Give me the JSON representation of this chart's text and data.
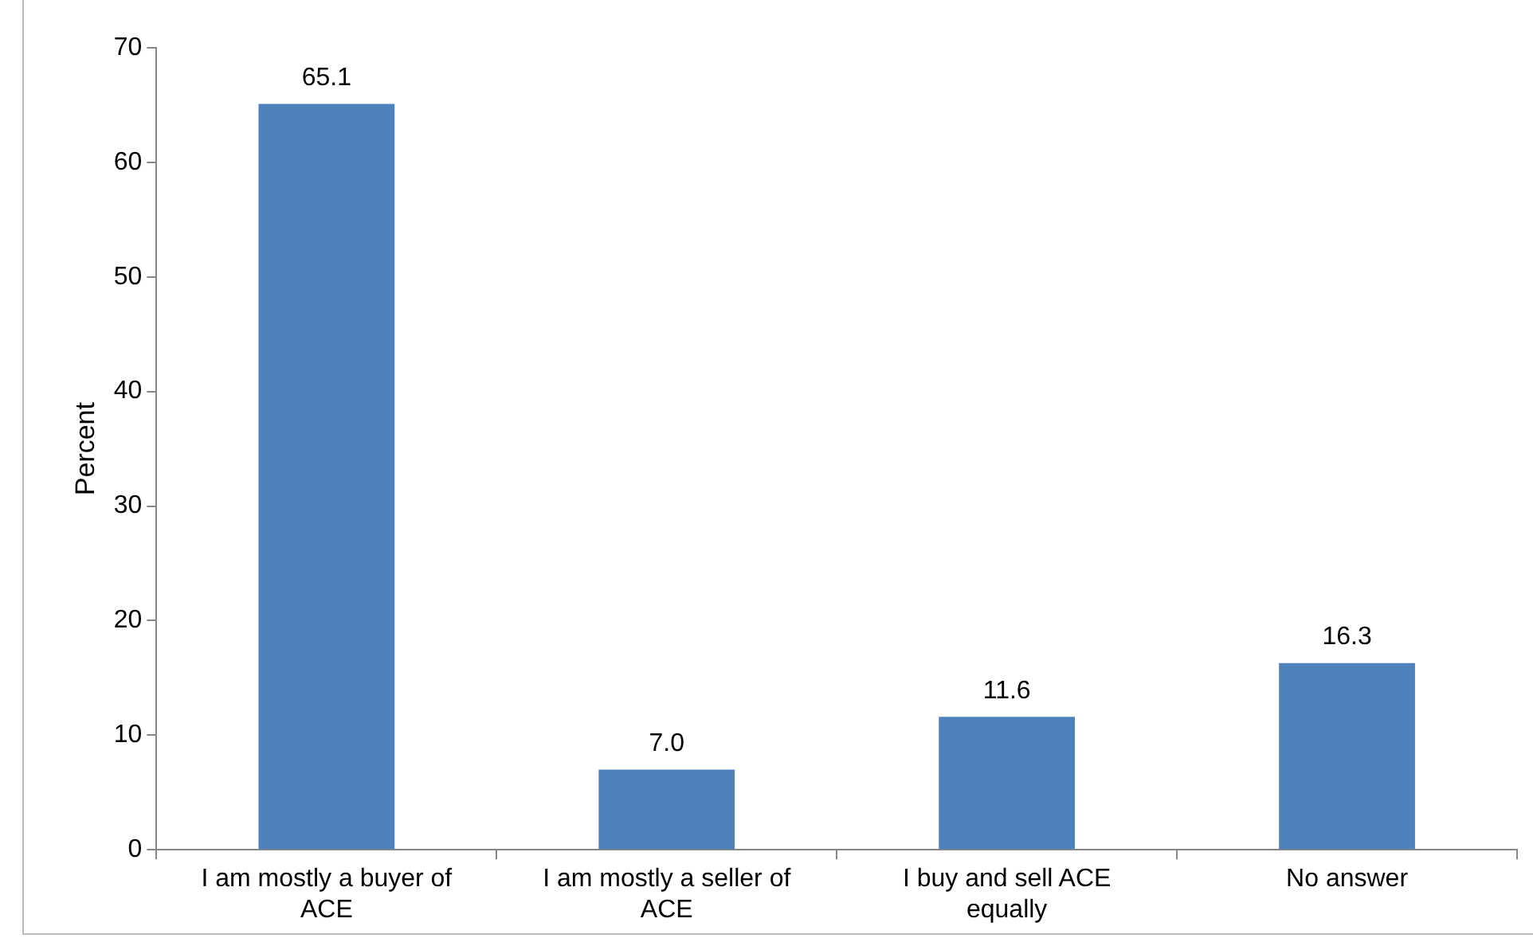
{
  "chart_data": {
    "type": "bar",
    "ylabel": "Percent",
    "categories": [
      "I am mostly a buyer of ACE",
      "I am mostly a seller of ACE",
      "I buy and sell ACE equally",
      "No answer"
    ],
    "values": [
      65.1,
      7.0,
      11.6,
      16.3
    ],
    "color": "#4f81bd",
    "value_labels": [
      "65.1",
      "7.0",
      "11.6",
      "16.3"
    ],
    "ylim": [
      0,
      70
    ],
    "yticks": [
      0,
      10,
      20,
      30,
      40,
      50,
      60,
      70
    ],
    "grid": false,
    "legend": false
  }
}
